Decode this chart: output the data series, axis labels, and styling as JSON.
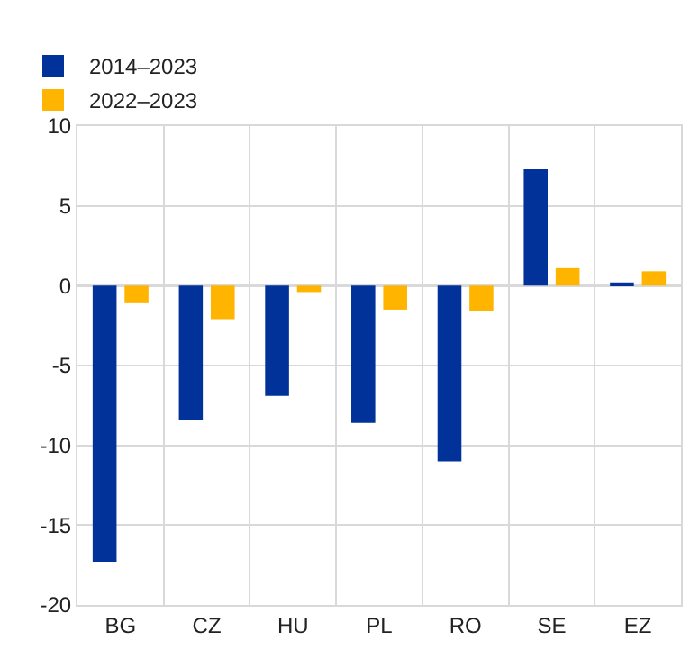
{
  "chart_data": {
    "type": "bar",
    "categories": [
      "BG",
      "CZ",
      "HU",
      "PL",
      "RO",
      "SE",
      "EZ"
    ],
    "series": [
      {
        "name": "2014–2023",
        "color": "#003299",
        "values": [
          -17.3,
          -8.4,
          -6.9,
          -8.6,
          -11.0,
          7.3,
          0.2
        ]
      },
      {
        "name": "2022–2023",
        "color": "#ffb400",
        "values": [
          -1.1,
          -2.1,
          -0.4,
          -1.5,
          -1.6,
          1.1,
          0.9
        ]
      }
    ],
    "ylim": [
      -20,
      10
    ],
    "yticks": [
      -20,
      -15,
      -10,
      -5,
      0,
      5,
      10
    ],
    "grid": true,
    "legend": "top left"
  }
}
